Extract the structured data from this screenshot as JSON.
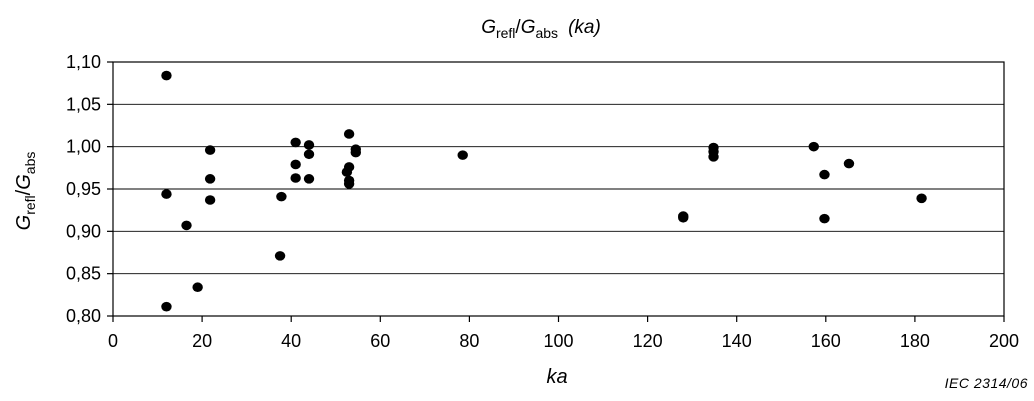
{
  "chart_data": {
    "type": "scatter",
    "title": {
      "var1": "G",
      "sub1": "refl",
      "slash": "/",
      "var2": "G",
      "sub2": "abs",
      "args": "(ka)"
    },
    "xlabel": "ka",
    "ylabel": {
      "var1": "G",
      "sub1": "refl",
      "slash": "/",
      "var2": "G",
      "sub2": "abs"
    },
    "xlim": [
      0,
      200
    ],
    "ylim": [
      0.8,
      1.1
    ],
    "x_ticks": [
      "0",
      "20",
      "40",
      "60",
      "80",
      "100",
      "120",
      "140",
      "160",
      "180",
      "200"
    ],
    "y_ticks": [
      "0,80",
      "0,85",
      "0,90",
      "0,95",
      "1,00",
      "1,05",
      "1,10"
    ],
    "grid": "horizontal",
    "marker_color": "#000000",
    "points": [
      {
        "x": 12.0,
        "y": 1.084
      },
      {
        "x": 12.0,
        "y": 0.944
      },
      {
        "x": 12.0,
        "y": 0.811
      },
      {
        "x": 16.5,
        "y": 0.907
      },
      {
        "x": 19.0,
        "y": 0.834
      },
      {
        "x": 21.8,
        "y": 0.996
      },
      {
        "x": 21.8,
        "y": 0.962
      },
      {
        "x": 21.8,
        "y": 0.937
      },
      {
        "x": 37.5,
        "y": 0.871
      },
      {
        "x": 37.8,
        "y": 0.941
      },
      {
        "x": 41.0,
        "y": 1.005
      },
      {
        "x": 41.0,
        "y": 0.979
      },
      {
        "x": 41.0,
        "y": 0.963
      },
      {
        "x": 44.0,
        "y": 1.002
      },
      {
        "x": 44.0,
        "y": 0.991
      },
      {
        "x": 44.0,
        "y": 0.962
      },
      {
        "x": 52.5,
        "y": 0.97
      },
      {
        "x": 53.0,
        "y": 1.015
      },
      {
        "x": 53.0,
        "y": 0.976
      },
      {
        "x": 53.0,
        "y": 0.96
      },
      {
        "x": 53.0,
        "y": 0.956
      },
      {
        "x": 54.5,
        "y": 0.997
      },
      {
        "x": 54.5,
        "y": 0.993
      },
      {
        "x": 78.5,
        "y": 0.99
      },
      {
        "x": 128.0,
        "y": 0.918
      },
      {
        "x": 128.0,
        "y": 0.916
      },
      {
        "x": 134.8,
        "y": 0.999
      },
      {
        "x": 134.8,
        "y": 0.994
      },
      {
        "x": 134.8,
        "y": 0.988
      },
      {
        "x": 157.3,
        "y": 1.0
      },
      {
        "x": 159.7,
        "y": 0.967
      },
      {
        "x": 159.7,
        "y": 0.915
      },
      {
        "x": 165.2,
        "y": 0.98
      },
      {
        "x": 181.5,
        "y": 0.939
      }
    ]
  },
  "credit": "IEC  2314/06"
}
